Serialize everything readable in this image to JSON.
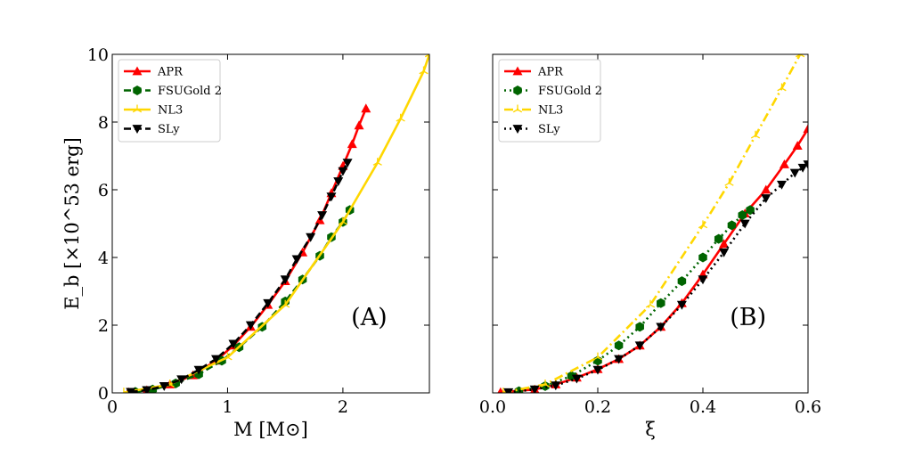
{
  "chart_data": [
    {
      "type": "line",
      "panel_label": "(A)",
      "xlabel": "M [M⊙]",
      "ylabel": "E_b [×10^53 erg]",
      "xlim": [
        0,
        2.75
      ],
      "ylim": [
        0,
        10
      ],
      "xticks": [
        0,
        1,
        2
      ],
      "xtick_labels": [
        "0",
        "1",
        "2"
      ],
      "yticks": [
        0,
        2,
        4,
        6,
        8,
        10
      ],
      "ytick_labels": [
        "0",
        "2",
        "4",
        "6",
        "8",
        "10"
      ],
      "legend_position": "top-left",
      "series": [
        {
          "name": "APR",
          "color": "#ff0000",
          "dash": "solid",
          "marker": "triangle-up",
          "x": [
            0.14,
            0.3,
            0.5,
            0.7,
            0.9,
            1.05,
            1.2,
            1.35,
            1.5,
            1.65,
            1.8,
            1.9,
            2.0,
            2.08,
            2.14,
            2.2
          ],
          "y": [
            0.02,
            0.08,
            0.25,
            0.52,
            0.95,
            1.4,
            1.95,
            2.6,
            3.3,
            4.15,
            5.1,
            5.9,
            6.7,
            7.35,
            7.9,
            8.4
          ]
        },
        {
          "name": "FSUGold 2",
          "color": "#006400",
          "dash": "dashed",
          "marker": "hexagon",
          "x": [
            0.2,
            0.35,
            0.55,
            0.75,
            0.95,
            1.1,
            1.3,
            1.5,
            1.65,
            1.8,
            1.9,
            2.0,
            2.06
          ],
          "y": [
            0.03,
            0.1,
            0.28,
            0.55,
            0.95,
            1.35,
            1.95,
            2.7,
            3.35,
            4.05,
            4.6,
            5.05,
            5.4
          ]
        },
        {
          "name": "NL3",
          "color": "#ffd700",
          "dash": "solid",
          "marker": "tri-up",
          "x": [
            0.1,
            0.5,
            1.0,
            1.5,
            2.0,
            2.3,
            2.5,
            2.7,
            2.75
          ],
          "y": [
            0.01,
            0.25,
            1.05,
            2.6,
            5.05,
            6.8,
            8.1,
            9.5,
            10.0
          ]
        },
        {
          "name": "SLy",
          "color": "#000000",
          "dash": "dashed",
          "marker": "triangle-down",
          "x": [
            0.16,
            0.3,
            0.45,
            0.6,
            0.75,
            0.9,
            1.05,
            1.2,
            1.35,
            1.5,
            1.6,
            1.72,
            1.82,
            1.9,
            1.96,
            2.0,
            2.04
          ],
          "y": [
            0.03,
            0.08,
            0.2,
            0.4,
            0.68,
            1.0,
            1.45,
            2.0,
            2.65,
            3.35,
            3.95,
            4.6,
            5.25,
            5.8,
            6.25,
            6.55,
            6.8
          ]
        }
      ]
    },
    {
      "type": "line",
      "panel_label": "(B)",
      "xlabel": "ξ",
      "ylabel": "",
      "xlim": [
        0,
        0.6
      ],
      "ylim": [
        0,
        10
      ],
      "xticks": [
        0,
        0.2,
        0.4,
        0.6
      ],
      "xtick_labels": [
        "0.0",
        "0.2",
        "0.4",
        "0.6"
      ],
      "yticks": [
        0,
        2,
        4,
        6,
        8,
        10
      ],
      "ytick_labels": [],
      "legend_position": "top-left",
      "series": [
        {
          "name": "APR",
          "color": "#ff0000",
          "dash": "solid",
          "marker": "triangle-up",
          "x": [
            0.015,
            0.08,
            0.12,
            0.16,
            0.2,
            0.24,
            0.28,
            0.32,
            0.36,
            0.4,
            0.44,
            0.48,
            0.52,
            0.555,
            0.58,
            0.6
          ],
          "y": [
            0.02,
            0.1,
            0.25,
            0.45,
            0.7,
            1.0,
            1.4,
            1.95,
            2.65,
            3.5,
            4.4,
            5.3,
            6.0,
            6.75,
            7.3,
            7.8
          ]
        },
        {
          "name": "FSUGold 2",
          "color": "#006400",
          "dash": "dotted",
          "marker": "hexagon",
          "x": [
            0.05,
            0.1,
            0.15,
            0.2,
            0.24,
            0.28,
            0.32,
            0.36,
            0.4,
            0.43,
            0.455,
            0.475,
            0.49
          ],
          "y": [
            0.05,
            0.2,
            0.5,
            0.95,
            1.4,
            1.95,
            2.65,
            3.3,
            4.0,
            4.55,
            4.95,
            5.25,
            5.4
          ]
        },
        {
          "name": "NL3",
          "color": "#ffd700",
          "dash": "dashdot",
          "marker": "tri-up",
          "x": [
            0.02,
            0.1,
            0.2,
            0.3,
            0.4,
            0.45,
            0.5,
            0.55,
            0.585
          ],
          "y": [
            0.01,
            0.25,
            1.05,
            2.6,
            4.95,
            6.2,
            7.6,
            9.0,
            10.0
          ]
        },
        {
          "name": "SLy",
          "color": "#000000",
          "dash": "dotted",
          "marker": "triangle-down",
          "x": [
            0.03,
            0.08,
            0.12,
            0.16,
            0.2,
            0.24,
            0.28,
            0.32,
            0.36,
            0.4,
            0.44,
            0.48,
            0.52,
            0.55,
            0.575,
            0.59,
            0.6
          ],
          "y": [
            0.02,
            0.1,
            0.22,
            0.42,
            0.68,
            1.0,
            1.4,
            1.95,
            2.6,
            3.35,
            4.15,
            5.0,
            5.75,
            6.15,
            6.5,
            6.65,
            6.75
          ]
        }
      ]
    }
  ]
}
